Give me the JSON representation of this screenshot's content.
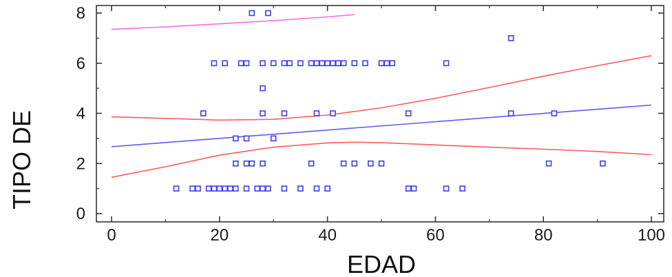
{
  "chart_data": {
    "type": "scatter",
    "title": "",
    "xlabel": "EDAD",
    "ylabel": "TIPO DE",
    "xlim": [
      0,
      100
    ],
    "ylim": [
      0,
      8
    ],
    "x_ticks": [
      "0",
      "20",
      "40",
      "60",
      "80",
      "100"
    ],
    "y_ticks": [
      "0",
      "2",
      "4",
      "6",
      "8"
    ],
    "grid": false,
    "colors": {
      "points": "#3a3aff",
      "fit_line": "#5a5af5",
      "confidence_band": "#ff5a5a",
      "prediction_limit": "#ff66ee",
      "axes": "#333333"
    },
    "series": [
      {
        "type": "scatter",
        "points": [
          [
            26,
            8
          ],
          [
            29,
            8
          ],
          [
            74,
            7
          ],
          [
            19,
            6
          ],
          [
            21,
            6
          ],
          [
            24,
            6
          ],
          [
            25,
            6
          ],
          [
            28,
            6
          ],
          [
            30,
            6
          ],
          [
            32,
            6
          ],
          [
            33,
            6
          ],
          [
            35,
            6
          ],
          [
            37,
            6
          ],
          [
            38,
            6
          ],
          [
            39,
            6
          ],
          [
            40,
            6
          ],
          [
            41,
            6
          ],
          [
            42,
            6
          ],
          [
            43,
            6
          ],
          [
            45,
            6
          ],
          [
            47,
            6
          ],
          [
            50,
            6
          ],
          [
            51,
            6
          ],
          [
            52,
            6
          ],
          [
            62,
            6
          ],
          [
            28,
            5
          ],
          [
            17,
            4
          ],
          [
            28,
            4
          ],
          [
            32,
            4
          ],
          [
            38,
            4
          ],
          [
            41,
            4
          ],
          [
            55,
            4
          ],
          [
            74,
            4
          ],
          [
            82,
            4
          ],
          [
            23,
            3
          ],
          [
            25,
            3
          ],
          [
            30,
            3
          ],
          [
            23,
            2
          ],
          [
            25,
            2
          ],
          [
            26,
            2
          ],
          [
            28,
            2
          ],
          [
            37,
            2
          ],
          [
            43,
            2
          ],
          [
            45,
            2
          ],
          [
            48,
            2
          ],
          [
            50,
            2
          ],
          [
            81,
            2
          ],
          [
            91,
            2
          ],
          [
            12,
            1
          ],
          [
            15,
            1
          ],
          [
            16,
            1
          ],
          [
            18,
            1
          ],
          [
            19,
            1
          ],
          [
            20,
            1
          ],
          [
            21,
            1
          ],
          [
            22,
            1
          ],
          [
            23,
            1
          ],
          [
            25,
            1
          ],
          [
            27,
            1
          ],
          [
            28,
            1
          ],
          [
            29,
            1
          ],
          [
            32,
            1
          ],
          [
            35,
            1
          ],
          [
            38,
            1
          ],
          [
            40,
            1
          ],
          [
            55,
            1
          ],
          [
            56,
            1
          ],
          [
            62,
            1
          ],
          [
            65,
            1
          ]
        ]
      },
      {
        "type": "line",
        "role": "fit",
        "points": [
          [
            0,
            2.67
          ],
          [
            100,
            4.33
          ]
        ]
      },
      {
        "type": "line",
        "role": "upper-confidence",
        "points": [
          [
            0,
            3.86
          ],
          [
            10,
            3.8
          ],
          [
            20,
            3.73
          ],
          [
            30,
            3.76
          ],
          [
            40,
            3.93
          ],
          [
            50,
            4.22
          ],
          [
            60,
            4.6
          ],
          [
            70,
            5.03
          ],
          [
            80,
            5.48
          ],
          [
            90,
            5.9
          ],
          [
            100,
            6.3
          ]
        ]
      },
      {
        "type": "line",
        "role": "lower-confidence",
        "points": [
          [
            0,
            1.45
          ],
          [
            10,
            1.87
          ],
          [
            20,
            2.33
          ],
          [
            30,
            2.65
          ],
          [
            40,
            2.82
          ],
          [
            45,
            2.85
          ],
          [
            50,
            2.83
          ],
          [
            60,
            2.74
          ],
          [
            70,
            2.65
          ],
          [
            80,
            2.57
          ],
          [
            90,
            2.48
          ],
          [
            100,
            2.35
          ]
        ]
      },
      {
        "type": "line",
        "role": "upper-prediction",
        "points": [
          [
            0,
            7.35
          ],
          [
            10,
            7.45
          ],
          [
            20,
            7.57
          ],
          [
            30,
            7.7
          ],
          [
            40,
            7.85
          ],
          [
            45,
            7.94
          ]
        ]
      }
    ]
  }
}
